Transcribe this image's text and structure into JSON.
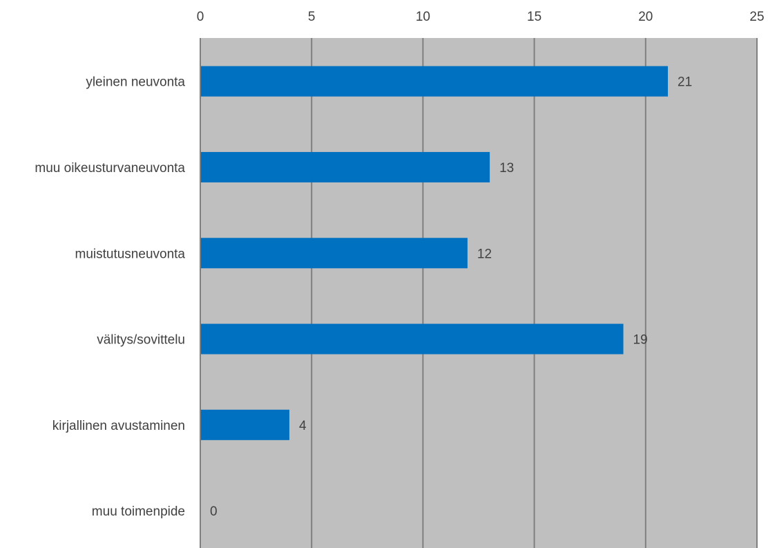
{
  "chart_data": {
    "type": "bar",
    "orientation": "horizontal",
    "categories": [
      "yleinen neuvonta",
      "muu oikeusturvaneuvonta",
      "muistutusneuvonta",
      "välitys/sovittelu",
      "kirjallinen avustaminen",
      "muu toimenpide"
    ],
    "values": [
      21,
      13,
      12,
      19,
      4,
      0
    ],
    "xlim": [
      0,
      25
    ],
    "xticks": [
      "0",
      "5",
      "10",
      "15",
      "20",
      "25"
    ],
    "x_axis_position": "top",
    "grid": true,
    "legend": "none",
    "data_labels": true,
    "colors": {
      "bar": "#0070c0",
      "plot_background": "#bfbfbf",
      "gridline": "#7f7f7f",
      "text": "#404040"
    }
  }
}
